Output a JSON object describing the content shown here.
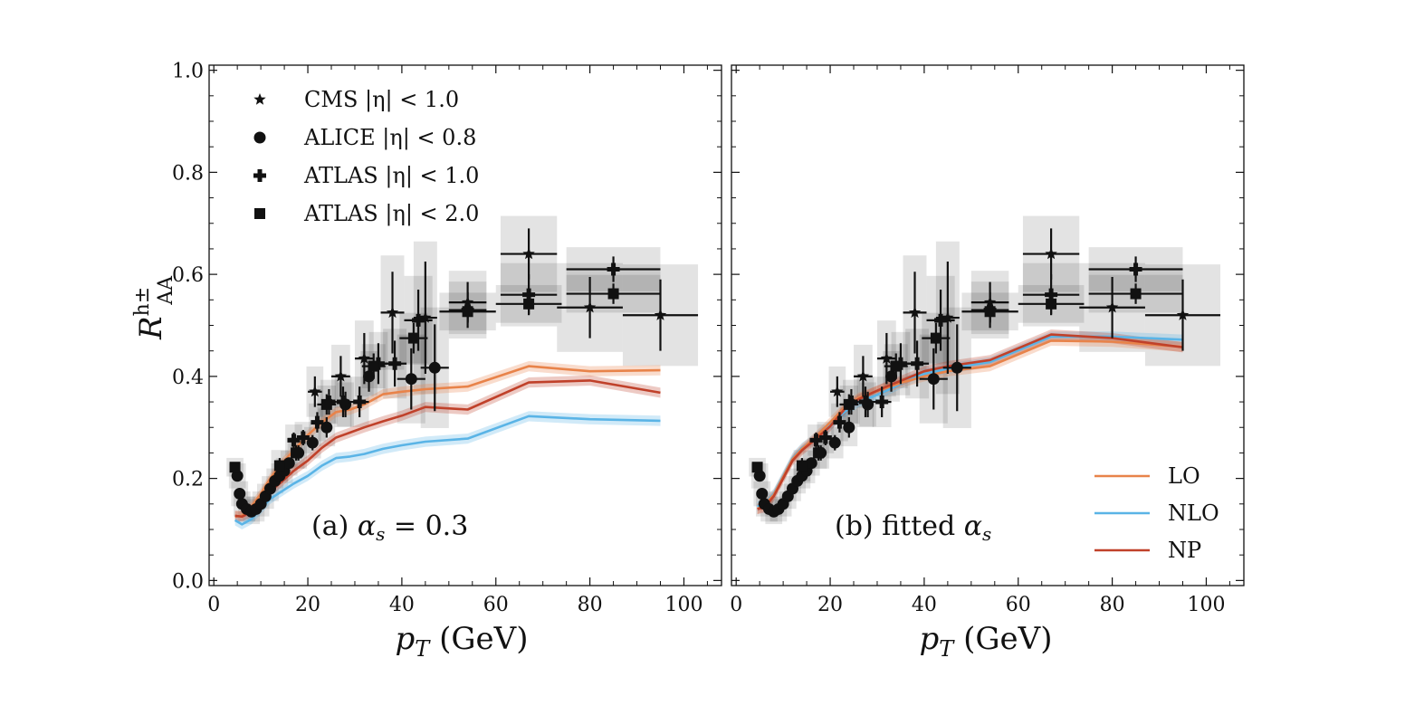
{
  "chart_data": [
    {
      "type": "line",
      "panel": "a",
      "annotation": "(a) α_s = 0.3",
      "ylabel": "R_AA^h±",
      "xlabel": "p_T (GeV)",
      "xlim": [
        -1,
        108
      ],
      "ylim": [
        -0.01,
        1.01
      ],
      "x_ticks": [
        "0",
        "20",
        "40",
        "60",
        "80",
        "100"
      ],
      "y_ticks": [
        "0.0",
        "0.2",
        "0.4",
        "0.6",
        "0.8",
        "1.0"
      ],
      "legend": [
        {
          "label": "CMS |η| < 1.0",
          "marker": "star"
        },
        {
          "label": "ALICE |η| < 0.8",
          "marker": "circle"
        },
        {
          "label": "ATLAS |η| < 1.0",
          "marker": "plus"
        },
        {
          "label": "ATLAS |η| < 2.0",
          "marker": "square"
        }
      ],
      "series": [
        {
          "name": "LO",
          "color": "#e8834a",
          "x": [
            4.5,
            6,
            8,
            10,
            12,
            14,
            17,
            20,
            23,
            26,
            29,
            32,
            36,
            40,
            45,
            54,
            67,
            80,
            95
          ],
          "y": [
            0.125,
            0.127,
            0.145,
            0.17,
            0.2,
            0.225,
            0.255,
            0.285,
            0.31,
            0.33,
            0.335,
            0.345,
            0.365,
            0.37,
            0.375,
            0.38,
            0.42,
            0.41,
            0.412
          ]
        },
        {
          "name": "NLO",
          "color": "#5ab4e6",
          "x": [
            4.5,
            6,
            8,
            10,
            12,
            14,
            17,
            20,
            23,
            26,
            29,
            32,
            36,
            40,
            45,
            54,
            67,
            80,
            95
          ],
          "y": [
            0.118,
            0.11,
            0.12,
            0.14,
            0.16,
            0.172,
            0.19,
            0.205,
            0.225,
            0.24,
            0.243,
            0.248,
            0.258,
            0.265,
            0.272,
            0.278,
            0.322,
            0.316,
            0.313
          ]
        },
        {
          "name": "NP",
          "color": "#c0412a",
          "x": [
            4.5,
            6,
            8,
            10,
            12,
            14,
            17,
            20,
            23,
            26,
            29,
            32,
            36,
            40,
            45,
            54,
            67,
            80,
            95
          ],
          "y": [
            0.127,
            0.125,
            0.135,
            0.155,
            0.175,
            0.19,
            0.215,
            0.235,
            0.26,
            0.28,
            0.29,
            0.3,
            0.312,
            0.323,
            0.34,
            0.335,
            0.388,
            0.392,
            0.368
          ]
        }
      ]
    },
    {
      "type": "line",
      "panel": "b",
      "annotation": "(b) fitted α_s",
      "ylabel": "R_AA^h±",
      "xlabel": "p_T (GeV)",
      "xlim": [
        -1,
        108
      ],
      "ylim": [
        -0.01,
        1.01
      ],
      "x_ticks": [
        "0",
        "20",
        "40",
        "60",
        "80",
        "100"
      ],
      "y_ticks": [
        "0.0",
        "0.2",
        "0.4",
        "0.6",
        "0.8",
        "1.0"
      ],
      "legend": [
        {
          "label": "LO",
          "color": "#e8834a"
        },
        {
          "label": "NLO",
          "color": "#5ab4e6"
        },
        {
          "label": "NP",
          "color": "#c0412a"
        }
      ],
      "series": [
        {
          "name": "NLO",
          "color": "#5ab4e6",
          "x": [
            4.5,
            6,
            8,
            10,
            12,
            14,
            17,
            20,
            23,
            26,
            29,
            32,
            36,
            40,
            45,
            54,
            67,
            80,
            95
          ],
          "y": [
            0.145,
            0.15,
            0.17,
            0.205,
            0.24,
            0.26,
            0.28,
            0.305,
            0.33,
            0.35,
            0.36,
            0.372,
            0.39,
            0.405,
            0.415,
            0.428,
            0.478,
            0.478,
            0.472
          ]
        },
        {
          "name": "LO",
          "color": "#e8834a",
          "x": [
            4.5,
            6,
            8,
            10,
            12,
            14,
            17,
            20,
            23,
            26,
            29,
            32,
            36,
            40,
            45,
            54,
            67,
            80,
            95
          ],
          "y": [
            0.14,
            0.148,
            0.168,
            0.203,
            0.238,
            0.258,
            0.282,
            0.31,
            0.338,
            0.358,
            0.368,
            0.378,
            0.39,
            0.4,
            0.41,
            0.42,
            0.47,
            0.468,
            0.458
          ]
        },
        {
          "name": "NP",
          "color": "#c0412a",
          "x": [
            4.5,
            6,
            8,
            10,
            12,
            14,
            17,
            20,
            23,
            26,
            29,
            32,
            36,
            40,
            45,
            54,
            67,
            80,
            95
          ],
          "y": [
            0.14,
            0.143,
            0.165,
            0.2,
            0.235,
            0.255,
            0.278,
            0.302,
            0.335,
            0.355,
            0.368,
            0.38,
            0.395,
            0.41,
            0.42,
            0.432,
            0.482,
            0.475,
            0.457
          ]
        }
      ]
    }
  ],
  "experimental_data": [
    {
      "name": "CMS",
      "marker": "star",
      "points": [
        {
          "x": 21.5,
          "y": 0.37,
          "xerr": 1.5,
          "yerr": 0.03
        },
        {
          "x": 27,
          "y": 0.4,
          "xerr": 2,
          "yerr": 0.04
        },
        {
          "x": 32,
          "y": 0.435,
          "xerr": 2,
          "yerr": 0.05
        },
        {
          "x": 38,
          "y": 0.525,
          "xerr": 2.5,
          "yerr": 0.08
        },
        {
          "x": 45,
          "y": 0.515,
          "xerr": 2.5,
          "yerr": 0.11
        },
        {
          "x": 54,
          "y": 0.545,
          "xerr": 4,
          "yerr": 0.04
        },
        {
          "x": 67,
          "y": 0.64,
          "xerr": 6,
          "yerr": 0.05
        },
        {
          "x": 80,
          "y": 0.535,
          "xerr": 7,
          "yerr": 0.06
        },
        {
          "x": 95,
          "y": 0.52,
          "xerr": 8,
          "yerr": 0.07
        }
      ]
    },
    {
      "name": "ALICE",
      "marker": "circle",
      "points": [
        {
          "x": 5,
          "y": 0.205,
          "xerr": 0,
          "yerr": 0.01
        },
        {
          "x": 5.5,
          "y": 0.17,
          "xerr": 0,
          "yerr": 0.01
        },
        {
          "x": 6,
          "y": 0.15,
          "xerr": 0,
          "yerr": 0.01
        },
        {
          "x": 7,
          "y": 0.14,
          "xerr": 0,
          "yerr": 0.01
        },
        {
          "x": 8,
          "y": 0.135,
          "xerr": 0,
          "yerr": 0.01
        },
        {
          "x": 9,
          "y": 0.14,
          "xerr": 0,
          "yerr": 0.01
        },
        {
          "x": 10,
          "y": 0.15,
          "xerr": 0,
          "yerr": 0.01
        },
        {
          "x": 11,
          "y": 0.165,
          "xerr": 0,
          "yerr": 0.01
        },
        {
          "x": 12,
          "y": 0.18,
          "xerr": 0,
          "yerr": 0.01
        },
        {
          "x": 13,
          "y": 0.195,
          "xerr": 0,
          "yerr": 0.01
        },
        {
          "x": 14,
          "y": 0.205,
          "xerr": 0,
          "yerr": 0.01
        },
        {
          "x": 15,
          "y": 0.215,
          "xerr": 0,
          "yerr": 0.01
        },
        {
          "x": 16,
          "y": 0.23,
          "xerr": 0,
          "yerr": 0.01
        },
        {
          "x": 18,
          "y": 0.25,
          "xerr": 0,
          "yerr": 0.015
        },
        {
          "x": 21,
          "y": 0.27,
          "xerr": 0,
          "yerr": 0.015
        },
        {
          "x": 24,
          "y": 0.3,
          "xerr": 0,
          "yerr": 0.02
        },
        {
          "x": 28,
          "y": 0.345,
          "xerr": 0,
          "yerr": 0.025
        },
        {
          "x": 33,
          "y": 0.4,
          "xerr": 0,
          "yerr": 0.03
        },
        {
          "x": 42,
          "y": 0.395,
          "xerr": 3,
          "yerr": 0.06
        },
        {
          "x": 47,
          "y": 0.417,
          "xerr": 3,
          "yerr": 0.085
        }
      ]
    },
    {
      "name": "ATLAS |η|<1.0",
      "marker": "plus",
      "points": [
        {
          "x": 17,
          "y": 0.275,
          "xerr": 1,
          "yerr": 0.015
        },
        {
          "x": 19,
          "y": 0.28,
          "xerr": 1,
          "yerr": 0.015
        },
        {
          "x": 22,
          "y": 0.31,
          "xerr": 1,
          "yerr": 0.02
        },
        {
          "x": 24.5,
          "y": 0.35,
          "xerr": 1.5,
          "yerr": 0.025
        },
        {
          "x": 27.5,
          "y": 0.35,
          "xerr": 1.5,
          "yerr": 0.03
        },
        {
          "x": 31,
          "y": 0.35,
          "xerr": 2,
          "yerr": 0.03
        },
        {
          "x": 35,
          "y": 0.425,
          "xerr": 2,
          "yerr": 0.04
        },
        {
          "x": 38.5,
          "y": 0.425,
          "xerr": 2.5,
          "yerr": 0.045
        },
        {
          "x": 43.5,
          "y": 0.51,
          "xerr": 3,
          "yerr": 0.06
        },
        {
          "x": 54,
          "y": 0.53,
          "xerr": 4,
          "yerr": 0.035
        },
        {
          "x": 67,
          "y": 0.56,
          "xerr": 6,
          "yerr": 0.04
        },
        {
          "x": 85,
          "y": 0.61,
          "xerr": 10,
          "yerr": 0.025
        }
      ]
    },
    {
      "name": "ATLAS |η|<2.0",
      "marker": "square",
      "points": [
        {
          "x": 4.5,
          "y": 0.222,
          "xerr": 0,
          "yerr": 0.005
        },
        {
          "x": 14,
          "y": 0.225,
          "xerr": 1,
          "yerr": 0.015
        },
        {
          "x": 17.5,
          "y": 0.25,
          "xerr": 1,
          "yerr": 0.015
        },
        {
          "x": 24,
          "y": 0.345,
          "xerr": 2,
          "yerr": 0.02
        },
        {
          "x": 34,
          "y": 0.42,
          "xerr": 2.5,
          "yerr": 0.025
        },
        {
          "x": 42.5,
          "y": 0.475,
          "xerr": 3,
          "yerr": 0.03
        },
        {
          "x": 54,
          "y": 0.527,
          "xerr": 6,
          "yerr": 0.02
        },
        {
          "x": 67,
          "y": 0.542,
          "xerr": 7,
          "yerr": 0.02
        },
        {
          "x": 85,
          "y": 0.562,
          "xerr": 10,
          "yerr": 0.02
        }
      ]
    }
  ]
}
